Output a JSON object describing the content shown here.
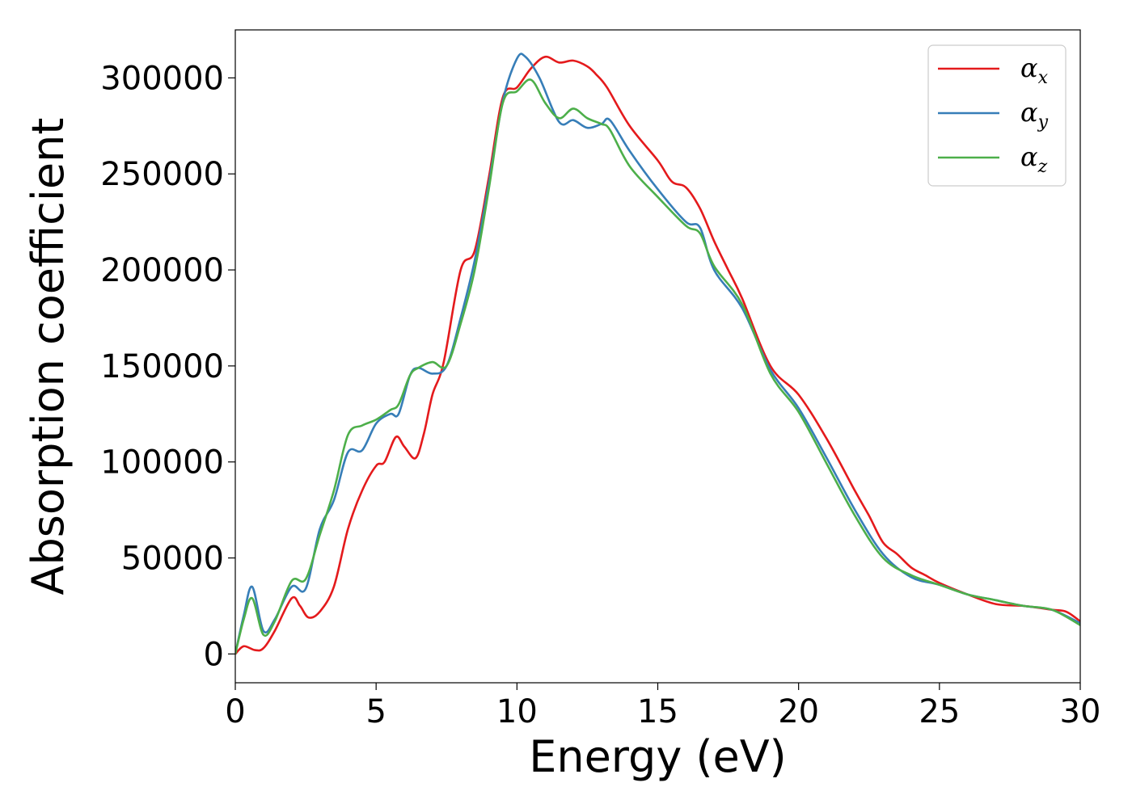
{
  "chart_data": {
    "type": "line",
    "xlabel": "Energy (eV)",
    "ylabel": "Absorption coefficient",
    "xlim": [
      0,
      30
    ],
    "ylim": [
      -15000,
      325000
    ],
    "xticks": [
      0,
      5,
      10,
      15,
      20,
      25,
      30
    ],
    "xtick_labels": [
      "0",
      "5",
      "10",
      "15",
      "20",
      "25",
      "30"
    ],
    "yticks": [
      0,
      50000,
      100000,
      150000,
      200000,
      250000,
      300000
    ],
    "ytick_labels": [
      "0",
      "50000",
      "100000",
      "150000",
      "200000",
      "250000",
      "300000"
    ],
    "grid": false,
    "legend_position": "top-right",
    "series": [
      {
        "name": "α_x",
        "label_main": "α",
        "label_sub": "x",
        "color": "#e41a1c",
        "x": [
          0,
          0.3,
          0.7,
          1.0,
          1.4,
          2.0,
          2.3,
          2.6,
          3.0,
          3.5,
          4.0,
          4.5,
          5.0,
          5.3,
          5.7,
          6.0,
          6.4,
          6.7,
          7.0,
          7.4,
          8.0,
          8.5,
          9.0,
          9.5,
          10.0,
          10.5,
          11.0,
          11.5,
          12.0,
          12.5,
          12.8,
          13.2,
          14.0,
          15.0,
          15.5,
          16.0,
          16.5,
          17.0,
          17.5,
          18.0,
          19.0,
          20.0,
          21.0,
          22.0,
          22.5,
          23.0,
          23.5,
          24.0,
          24.5,
          25.0,
          26.0,
          27.0,
          28.0,
          29.0,
          29.5,
          30.0
        ],
        "y": [
          0,
          4000,
          2000,
          3000,
          12000,
          29000,
          25000,
          19000,
          22000,
          35000,
          65000,
          85000,
          98000,
          100000,
          113000,
          108000,
          102000,
          115000,
          135000,
          152000,
          200000,
          210000,
          248000,
          290000,
          295000,
          305000,
          311000,
          308000,
          309000,
          306000,
          302000,
          295000,
          275000,
          257000,
          246000,
          243000,
          232000,
          215000,
          200000,
          185000,
          150000,
          135000,
          112000,
          85000,
          72000,
          58000,
          52000,
          45000,
          41000,
          37000,
          31000,
          26000,
          25000,
          23000,
          22000,
          17000
        ]
      },
      {
        "name": "α_y",
        "label_main": "α",
        "label_sub": "y",
        "color": "#377eb8",
        "x": [
          0,
          0.3,
          0.6,
          1.0,
          1.4,
          2.0,
          2.5,
          3.0,
          3.5,
          4.0,
          4.5,
          5.0,
          5.5,
          5.8,
          6.2,
          6.5,
          7.0,
          7.5,
          8.0,
          8.5,
          9.0,
          9.5,
          10.0,
          10.3,
          10.8,
          11.5,
          12.0,
          12.5,
          13.0,
          13.3,
          14.0,
          15.0,
          16.0,
          16.5,
          17.0,
          18.0,
          19.0,
          20.0,
          21.0,
          22.0,
          23.0,
          24.0,
          25.0,
          26.0,
          27.0,
          28.0,
          29.0,
          30.0
        ],
        "y": [
          0,
          20000,
          35000,
          12000,
          18000,
          35000,
          34000,
          65000,
          80000,
          105000,
          106000,
          120000,
          125000,
          125000,
          145000,
          149000,
          146000,
          150000,
          175000,
          205000,
          245000,
          288000,
          310000,
          311000,
          300000,
          277000,
          278000,
          274000,
          276000,
          278000,
          262000,
          242000,
          225000,
          222000,
          200000,
          180000,
          148000,
          128000,
          102000,
          75000,
          52000,
          40000,
          36000,
          31000,
          28000,
          25000,
          23000,
          16000
        ]
      },
      {
        "name": "α_z",
        "label_main": "α",
        "label_sub": "z",
        "color": "#4daf4a",
        "x": [
          0,
          0.3,
          0.6,
          1.0,
          1.4,
          2.0,
          2.5,
          3.0,
          3.5,
          4.0,
          4.5,
          5.0,
          5.5,
          5.8,
          6.2,
          6.5,
          7.0,
          7.5,
          8.0,
          8.5,
          9.0,
          9.5,
          10.0,
          10.5,
          11.0,
          11.5,
          12.0,
          12.5,
          13.0,
          13.3,
          14.0,
          15.0,
          16.0,
          16.5,
          17.0,
          18.0,
          19.0,
          20.0,
          21.0,
          22.0,
          23.0,
          24.0,
          25.0,
          26.0,
          27.0,
          28.0,
          29.0,
          30.0
        ],
        "y": [
          0,
          18000,
          29000,
          10000,
          17000,
          38000,
          39000,
          62000,
          85000,
          114000,
          119000,
          122000,
          127000,
          130000,
          145000,
          149000,
          152000,
          150000,
          172000,
          200000,
          242000,
          287000,
          293000,
          299000,
          287000,
          279000,
          284000,
          279000,
          276000,
          273000,
          254000,
          238000,
          223000,
          219000,
          202000,
          182000,
          146000,
          126000,
          99000,
          72000,
          50000,
          41000,
          36000,
          31000,
          28000,
          25000,
          23000,
          15000
        ]
      }
    ]
  }
}
